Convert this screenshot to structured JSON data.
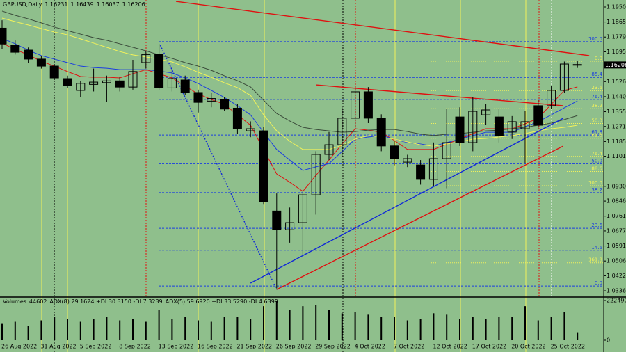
{
  "chart_data": {
    "type": "candlestick",
    "symbol": "GBPUSD,Daily",
    "categories": [
      "26 Aug 2022",
      null,
      null,
      "31 Aug 2022",
      null,
      null,
      "5 Sep 2022",
      null,
      null,
      "8 Sep 2022",
      null,
      null,
      "13 Sep 2022",
      null,
      null,
      "16 Sep 2022",
      null,
      null,
      "21 Sep 2022",
      null,
      null,
      "26 Sep 2022",
      null,
      null,
      "29 Sep 2022",
      null,
      null,
      "4 Oct 2022",
      null,
      null,
      "7 Oct 2022",
      null,
      null,
      "12 Oct 2022",
      null,
      null,
      "17 Oct 2022",
      null,
      null,
      "20 Oct 2022",
      null,
      null,
      "25 Oct 2022",
      null,
      null
    ],
    "open": [
      1.183,
      1.1733,
      1.1705,
      1.1654,
      1.1614,
      1.1543,
      1.1476,
      1.151,
      1.152,
      1.153,
      1.1495,
      1.1634,
      1.168,
      1.149,
      1.1535,
      1.1464,
      1.1415,
      1.1425,
      1.1375,
      1.1246,
      1.1246,
      1.079,
      1.0684,
      1.0724,
      1.0882,
      1.1112,
      1.1167,
      1.1318,
      1.1468,
      1.1318,
      1.116,
      1.1068,
      1.1052,
      1.097,
      1.1088,
      1.1325,
      1.1179,
      1.1337,
      1.1325,
      1.1239,
      1.1258,
      1.1389,
      1.1389,
      1.1476,
      1.16231
    ],
    "high": [
      1.1875,
      1.176,
      1.172,
      1.167,
      1.1625,
      1.156,
      1.153,
      1.16,
      1.156,
      1.1555,
      1.165,
      1.17,
      1.174,
      1.159,
      1.156,
      1.148,
      1.146,
      1.144,
      1.14,
      1.13,
      1.127,
      1.089,
      1.081,
      1.09,
      1.113,
      1.124,
      1.138,
      1.149,
      1.1495,
      1.134,
      1.119,
      1.111,
      1.108,
      1.118,
      1.137,
      1.138,
      1.144,
      1.14,
      1.137,
      1.133,
      1.136,
      1.142,
      1.15,
      1.164,
      1.16439
    ],
    "low": [
      1.171,
      1.168,
      1.163,
      1.16,
      1.1535,
      1.149,
      1.144,
      1.147,
      1.141,
      1.147,
      1.148,
      1.16,
      1.148,
      1.147,
      1.145,
      1.135,
      1.138,
      1.136,
      1.123,
      1.121,
      1.083,
      1.035,
      1.061,
      1.054,
      1.077,
      1.108,
      1.11,
      1.126,
      1.129,
      1.113,
      1.105,
      1.104,
      1.094,
      1.093,
      1.092,
      1.116,
      1.113,
      1.128,
      1.118,
      1.12,
      1.106,
      1.126,
      1.137,
      1.146,
      1.16037
    ],
    "close": [
      1.174,
      1.1693,
      1.1654,
      1.1614,
      1.1547,
      1.1503,
      1.1516,
      1.1523,
      1.153,
      1.1495,
      1.1583,
      1.168,
      1.149,
      1.1543,
      1.1464,
      1.1408,
      1.143,
      1.137,
      1.1258,
      1.1258,
      1.0843,
      1.0684,
      1.0724,
      1.0882,
      1.1112,
      1.1167,
      1.1318,
      1.1468,
      1.1318,
      1.116,
      1.1088,
      1.1088,
      1.097,
      1.1088,
      1.1179,
      1.1179,
      1.1357,
      1.1365,
      1.1219,
      1.1298,
      1.1298,
      1.1278,
      1.1476,
      1.1626,
      1.16206
    ],
    "up_color": "#ffffff",
    "down_color": "#000000",
    "background": "#8fbf8c",
    "ylim": [
      1.0301,
      1.199
    ],
    "yticks": [
      1.19505,
      {
        "value": 1.1865,
        "label": "1.18650"
      },
      1.17795,
      1.16955,
      {
        "value": 1.1526,
        "label": "1.15260"
      },
      1.14405,
      {
        "value": 1.1355,
        "label": "1.13550"
      },
      {
        "value": 1.1271,
        "label": "1.12710"
      },
      1.11855,
      1.11015,
      1.09305,
      1.08465,
      {
        "value": 1.0761,
        "label": "1.07610"
      },
      {
        "value": 1.0677,
        "label": "1.06770"
      },
      1.05915,
      {
        "value": 1.0506,
        "label": "1.05060"
      },
      {
        "value": 1.0422,
        "label": "1.04220"
      },
      1.03365
    ],
    "ma_series": [
      {
        "color": "#e01010",
        "values": [
          1.1745,
          1.1709,
          1.1678,
          1.1642,
          1.1614,
          1.1583,
          1.1555,
          1.1551,
          1.1551,
          1.1547,
          1.1571,
          1.1594,
          1.1571,
          1.1547,
          1.15,
          1.1456,
          1.1424,
          1.1397,
          1.1337,
          1.1278,
          1.114,
          1.1001,
          1.0954,
          1.0902,
          1.0993,
          1.108,
          1.1171,
          1.1258,
          1.125,
          1.1238,
          1.1191,
          1.114,
          1.114,
          1.114,
          1.1171,
          1.1199,
          1.123,
          1.1258,
          1.1258,
          1.1258,
          1.1286,
          1.1318,
          1.1397,
          1.1476,
          1.1496
        ]
      },
      {
        "color": "#1a3de0",
        "values": [
          1.1772,
          1.1741,
          1.1705,
          1.1674,
          1.1654,
          1.1634,
          1.1614,
          1.1606,
          1.1602,
          1.1594,
          1.1594,
          1.1594,
          1.1586,
          1.1575,
          1.1547,
          1.1515,
          1.1476,
          1.1436,
          1.1389,
          1.1337,
          1.1238,
          1.114,
          1.108,
          1.1021,
          1.1041,
          1.106,
          1.1128,
          1.1199,
          1.1211,
          1.1219,
          1.1199,
          1.1179,
          1.1171,
          1.1159,
          1.1179,
          1.1199,
          1.1219,
          1.1238,
          1.1238,
          1.1238,
          1.127,
          1.1298,
          1.1337,
          1.1377,
          1.1416
        ]
      },
      {
        "color": "#f2f25a",
        "values": [
          1.1887,
          1.1867,
          1.1848,
          1.1828,
          1.1808,
          1.1792,
          1.1769,
          1.1745,
          1.1721,
          1.1697,
          1.1678,
          1.1666,
          1.1654,
          1.1638,
          1.161,
          1.1579,
          1.1551,
          1.1519,
          1.1492,
          1.1448,
          1.1337,
          1.1246,
          1.1187,
          1.114,
          1.114,
          1.114,
          1.1163,
          1.1199,
          1.1219,
          1.1211,
          1.1199,
          1.1183,
          1.1167,
          1.1159,
          1.1171,
          1.1183,
          1.1199,
          1.1203,
          1.1211,
          1.1219,
          1.123,
          1.1246,
          1.1258,
          1.1266,
          1.1278
        ]
      },
      {
        "color": "#3a4a3a",
        "values": [
          1.1927,
          1.1903,
          1.1883,
          1.186,
          1.1836,
          1.1816,
          1.1796,
          1.1776,
          1.1761,
          1.1741,
          1.1721,
          1.1701,
          1.1678,
          1.1658,
          1.1634,
          1.1614,
          1.159,
          1.1559,
          1.1531,
          1.1496,
          1.142,
          1.1345,
          1.1302,
          1.1266,
          1.1254,
          1.1246,
          1.1238,
          1.1242,
          1.125,
          1.1254,
          1.1254,
          1.1242,
          1.1227,
          1.1219,
          1.1227,
          1.123,
          1.1238,
          1.1246,
          1.125,
          1.1258,
          1.1266,
          1.1278,
          1.129,
          1.131,
          1.1333
        ]
      }
    ],
    "trendlines": [
      {
        "color": "#e01010",
        "from": [
          13.3,
          1.1982
        ],
        "to": [
          44.9,
          1.1674
        ]
      },
      {
        "color": "#e01010",
        "from": [
          24.0,
          1.1507
        ],
        "to": [
          42.9,
          1.1389
        ]
      },
      {
        "color": "#1028d8",
        "from": [
          19.0,
          1.038
        ],
        "to": [
          42.9,
          1.1317
        ]
      },
      {
        "color": "#e01010",
        "from": [
          21.0,
          1.0344
        ],
        "to": [
          42.9,
          1.1159
        ]
      },
      {
        "color": "#1028d8",
        "dash": true,
        "from": [
          12.1,
          1.1733
        ],
        "to": [
          21.0,
          1.0344
        ]
      }
    ],
    "fib_levels": [
      {
        "label": "100.0",
        "value": 1.1753,
        "color": "#1a3de0"
      },
      {
        "label": "85.4",
        "value": 1.155,
        "color": "#1a3de0"
      },
      {
        "label": "76.4",
        "value": 1.1425,
        "color": "#1a3de0"
      },
      {
        "label": "61.8",
        "value": 1.1222,
        "color": "#1a3de0"
      },
      {
        "label": "50.0",
        "value": 1.1059,
        "color": "#1a3de0"
      },
      {
        "label": "38.2",
        "value": 1.0895,
        "color": "#1a3de0"
      },
      {
        "label": "23.6",
        "value": 1.0692,
        "color": "#1a3de0"
      },
      {
        "label": "14.6",
        "value": 1.0567,
        "color": "#1a3de0"
      },
      {
        "label": "0.0",
        "value": 1.0364,
        "color": "#1a3de0"
      },
      {
        "label": "0.0",
        "value": 1.1642,
        "color": "#f2f25a"
      },
      {
        "label": "23.6",
        "value": 1.1475,
        "color": "#f2f25a"
      },
      {
        "label": "38.2",
        "value": 1.1372,
        "color": "#f2f25a"
      },
      {
        "label": "50.0",
        "value": 1.1288,
        "color": "#f2f25a"
      },
      {
        "label": "61.8",
        "value": 1.1204,
        "color": "#f2f25a"
      },
      {
        "label": "76.4",
        "value": 1.1101,
        "color": "#f2f25a"
      },
      {
        "label": "88.6",
        "value": 1.1015,
        "color": "#f2f25a"
      },
      {
        "label": "100.0",
        "value": 1.0934,
        "color": "#f2f25a"
      },
      {
        "label": "161.8",
        "value": 1.0496,
        "color": "#f2f25a"
      }
    ],
    "volume": {
      "label": "Volumes",
      "color": "#000000",
      "values": [
        91400,
        103300,
        79500,
        111200,
        131100,
        119200,
        103300,
        119200,
        131100,
        111200,
        119200,
        103300,
        170800,
        119200,
        131100,
        111200,
        103300,
        131100,
        131100,
        119200,
        190700,
        222490,
        170800,
        190700,
        198700,
        170800,
        151000,
        158900,
        143000,
        131100,
        131100,
        111200,
        119200,
        151000,
        143000,
        119200,
        131100,
        119200,
        131100,
        131100,
        190700,
        111200,
        131100,
        158900,
        44602
      ],
      "ylim": [
        0,
        222490
      ],
      "yticks": [
        0,
        222490
      ]
    },
    "indicator_texts": [
      "ADX(8) 29.1624 +DI:30.3150 -DI:7.3239",
      "ADX(5) 59.6920 +DI:33.5290 -DI:4.6399"
    ]
  }
}
